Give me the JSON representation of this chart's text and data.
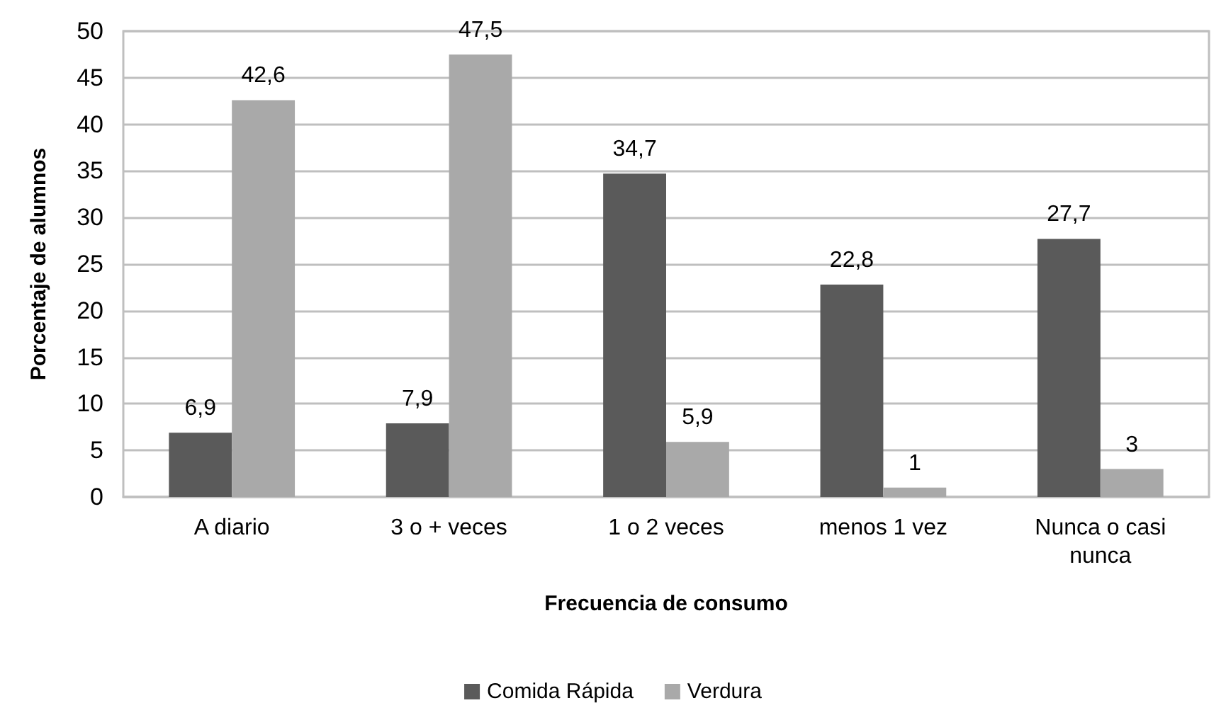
{
  "chart_data": {
    "type": "bar",
    "xlabel": "Frecuencia de consumo",
    "ylabel": "Porcentaje de alumnos",
    "categories": [
      "A diario",
      "3 o + veces",
      "1 o 2 veces",
      "menos 1 vez",
      "Nunca o casi nunca"
    ],
    "series": [
      {
        "name": "Comida Rápida",
        "color": "#5a5a5a",
        "values": [
          6.9,
          7.9,
          34.7,
          22.8,
          27.7
        ],
        "value_labels": [
          "6,9",
          "7,9",
          "34,7",
          "22,8",
          "27,7"
        ]
      },
      {
        "name": "Verdura",
        "color": "#a9a9a9",
        "values": [
          42.6,
          47.5,
          5.9,
          1,
          3
        ],
        "value_labels": [
          "42,6",
          "47,5",
          "5,9",
          "1",
          "3"
        ]
      }
    ],
    "ylim": [
      0,
      50
    ],
    "yticks": [
      0,
      5,
      10,
      15,
      20,
      25,
      30,
      35,
      40,
      45,
      50
    ],
    "grid": "y",
    "legend": "bottom"
  }
}
